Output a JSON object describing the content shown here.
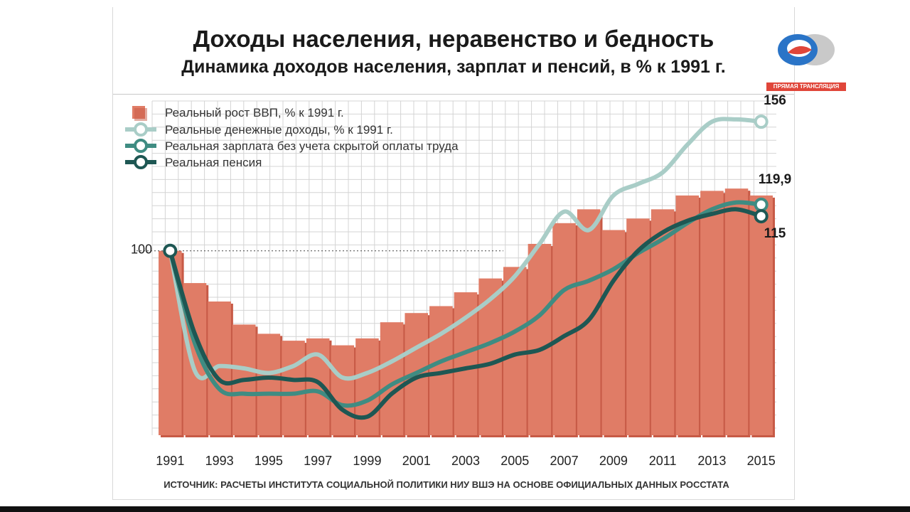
{
  "title": "Доходы населения, неравенство и бедность",
  "subtitle": "Динамика доходов населения, зарплат и пенсий, в % к 1991 г.",
  "badge": "ПРЯМАЯ ТРАНСЛЯЦИЯ",
  "source": "ИСТОЧНИК: РАСЧЕТЫ ИНСТИТУТА СОЦИАЛЬНОЙ ПОЛИТИКИ НИУ ВШЭ НА ОСНОВЕ ОФИЦИАЛЬНЫХ ДАННЫХ РОССТАТА",
  "colors": {
    "bar": "#e07c66",
    "bar_shadow": "#c75a46",
    "income": "#a9cdc7",
    "wage": "#3f8c82",
    "pension": "#1e5753",
    "grid": "#d4d4d4"
  },
  "chart_data": {
    "type": "bar",
    "title": "Динамика доходов населения, зарплат и пенсий, в % к 1991 г.",
    "xlabel": "",
    "ylabel": "",
    "ylim": [
      20,
      165
    ],
    "grid": true,
    "legend_position": "top-left",
    "x_tick_labels": [
      "1991",
      "1993",
      "1995",
      "1997",
      "1999",
      "2001",
      "2003",
      "2005",
      "2007",
      "2009",
      "2011",
      "2013",
      "2015"
    ],
    "y_tick_labels": [
      {
        "value": 100,
        "label": "100"
      }
    ],
    "categories": [
      1991,
      1992,
      1993,
      1994,
      1995,
      1996,
      1997,
      1998,
      1999,
      2000,
      2001,
      2002,
      2003,
      2004,
      2005,
      2006,
      2007,
      2008,
      2009,
      2010,
      2011,
      2012,
      2013,
      2014,
      2015
    ],
    "bar_series": {
      "name": "Реальный рост ВВП, % к 1991 г.",
      "values": [
        100,
        86,
        78,
        68,
        64,
        61,
        62,
        59,
        62,
        69,
        73,
        76,
        82,
        88,
        93,
        103,
        112,
        118,
        109,
        114,
        118,
        124,
        126,
        127,
        124
      ]
    },
    "line_series": [
      {
        "name": "Реальные денежные доходы, % к 1991 г.",
        "x": [
          1991,
          1992,
          1993,
          1994,
          1995,
          1996,
          1997,
          1998,
          1999,
          2000,
          2001,
          2002,
          2003,
          2004,
          2005,
          2006,
          2007,
          2008,
          2009,
          2010,
          2011,
          2012,
          2013,
          2014,
          2015
        ],
        "values": [
          100,
          48,
          50,
          49,
          47,
          50,
          55,
          45,
          47,
          52,
          58,
          64,
          71,
          79,
          89,
          103,
          117,
          109,
          124,
          129,
          134,
          146,
          156,
          157,
          156
        ],
        "end_label": "156"
      },
      {
        "name": "Реальная зарплата без учета скрытой оплаты труда",
        "x": [
          1991,
          1992,
          1993,
          1994,
          1995,
          1996,
          1997,
          1998,
          1999,
          2000,
          2001,
          2002,
          2003,
          2004,
          2005,
          2006,
          2007,
          2008,
          2009,
          2010,
          2011,
          2012,
          2013,
          2014,
          2015
        ],
        "values": [
          100,
          60,
          40,
          38,
          38,
          38,
          39,
          33,
          35,
          42,
          47,
          52,
          56,
          60,
          65,
          72,
          83,
          87,
          92,
          99,
          105,
          112,
          118,
          121,
          120
        ],
        "end_label": "119,9"
      },
      {
        "name": "Реальная пенсия",
        "x": [
          1991,
          1992,
          1993,
          1994,
          1995,
          1996,
          1997,
          1998,
          1999,
          2000,
          2001,
          2002,
          2003,
          2004,
          2005,
          2006,
          2007,
          2008,
          2009,
          2010,
          2011,
          2012,
          2013,
          2014,
          2015
        ],
        "values": [
          100,
          64,
          44,
          44,
          45,
          44,
          43,
          31,
          28,
          38,
          45,
          47,
          49,
          51,
          55,
          57,
          63,
          70,
          87,
          100,
          108,
          113,
          116,
          118,
          115
        ],
        "end_label": "115"
      }
    ]
  }
}
